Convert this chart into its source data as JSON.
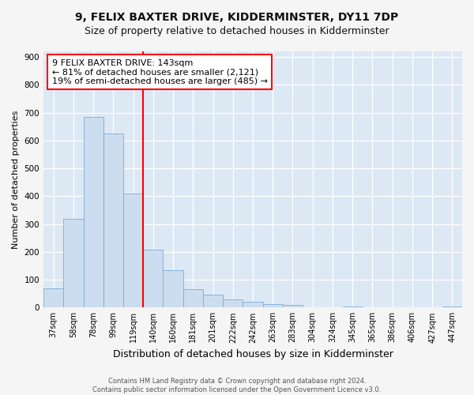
{
  "title1": "9, FELIX BAXTER DRIVE, KIDDERMINSTER, DY11 7DP",
  "title2": "Size of property relative to detached houses in Kidderminster",
  "xlabel": "Distribution of detached houses by size in Kidderminster",
  "ylabel": "Number of detached properties",
  "categories": [
    "37sqm",
    "58sqm",
    "78sqm",
    "99sqm",
    "119sqm",
    "140sqm",
    "160sqm",
    "181sqm",
    "201sqm",
    "222sqm",
    "242sqm",
    "263sqm",
    "283sqm",
    "304sqm",
    "324sqm",
    "345sqm",
    "365sqm",
    "386sqm",
    "406sqm",
    "427sqm",
    "447sqm"
  ],
  "values": [
    70,
    320,
    685,
    625,
    410,
    207,
    135,
    65,
    45,
    30,
    20,
    12,
    10,
    2,
    0,
    5,
    0,
    0,
    0,
    0,
    5
  ],
  "bar_color": "#ccddf0",
  "bar_edge_color": "#7aadd6",
  "vline_index": 4.5,
  "annotation_title": "9 FELIX BAXTER DRIVE: 143sqm",
  "annotation_line1": "← 81% of detached houses are smaller (2,121)",
  "annotation_line2": "19% of semi-detached houses are larger (485) →",
  "ylim": [
    0,
    920
  ],
  "yticks": [
    0,
    100,
    200,
    300,
    400,
    500,
    600,
    700,
    800,
    900
  ],
  "footer1": "Contains HM Land Registry data © Crown copyright and database right 2024.",
  "footer2": "Contains public sector information licensed under the Open Government Licence v3.0.",
  "fig_bg_color": "#f5f5f5",
  "plot_bg_color": "#dde8f5",
  "grid_color": "#ffffff",
  "title1_fontsize": 10,
  "title2_fontsize": 9,
  "tick_fontsize": 7,
  "ylabel_fontsize": 8,
  "xlabel_fontsize": 9,
  "footer_fontsize": 6,
  "annot_fontsize": 8
}
